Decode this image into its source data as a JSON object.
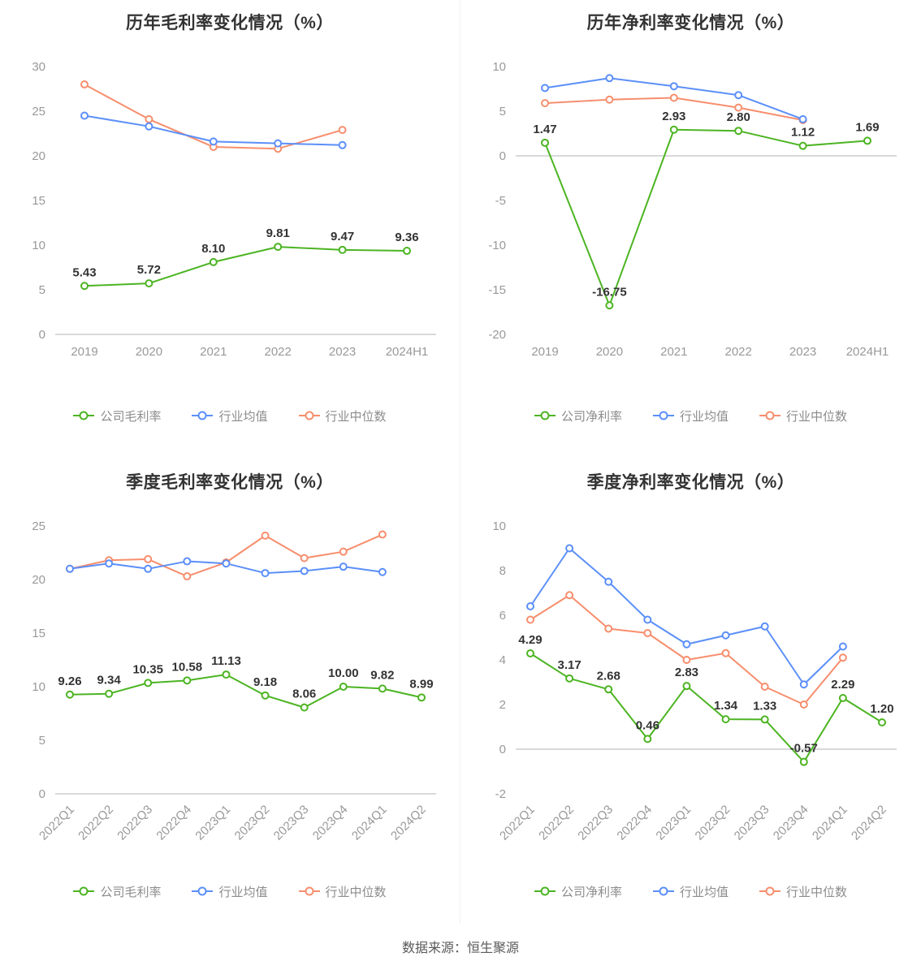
{
  "footer": {
    "source": "数据来源：恒生聚源"
  },
  "colors": {
    "company": "#4cb422",
    "industry_avg": "#5b8ff9",
    "industry_median": "#f78e6d"
  },
  "chart_data": [
    {
      "type": "line",
      "title": "历年毛利率变化情况（%）",
      "categories": [
        "2019",
        "2020",
        "2021",
        "2022",
        "2023",
        "2024H1"
      ],
      "ylim": [
        0,
        30
      ],
      "yticks": [
        30,
        25,
        20,
        15,
        10,
        5,
        0
      ],
      "x_label_rotate": false,
      "grid": false,
      "legend_position": "bottom",
      "series": [
        {
          "name": "公司毛利率",
          "color": "#4cb422",
          "values": [
            5.43,
            5.72,
            8.1,
            9.81,
            9.47,
            9.36
          ],
          "point_labels": [
            "5.43",
            "5.72",
            "8.10",
            "9.81",
            "9.47",
            "9.36"
          ]
        },
        {
          "name": "行业均值",
          "color": "#5b8ff9",
          "values": [
            24.5,
            23.3,
            21.6,
            21.4,
            21.2,
            null
          ]
        },
        {
          "name": "行业中位数",
          "color": "#f78e6d",
          "values": [
            28.0,
            24.1,
            21.0,
            20.8,
            22.9,
            null
          ]
        }
      ]
    },
    {
      "type": "line",
      "title": "历年净利率变化情况（%）",
      "categories": [
        "2019",
        "2020",
        "2021",
        "2022",
        "2023",
        "2024H1"
      ],
      "ylim": [
        -20,
        10
      ],
      "yticks": [
        10,
        5,
        0,
        -5,
        -10,
        -15,
        -20
      ],
      "x_label_rotate": false,
      "grid": false,
      "legend_position": "bottom",
      "series": [
        {
          "name": "公司净利率",
          "color": "#4cb422",
          "values": [
            1.47,
            -16.75,
            2.93,
            2.8,
            1.12,
            1.69
          ],
          "point_labels": [
            "1.47",
            "-16.75",
            "2.93",
            "2.80",
            "1.12",
            "1.69"
          ]
        },
        {
          "name": "行业均值",
          "color": "#5b8ff9",
          "values": [
            7.6,
            8.7,
            7.8,
            6.8,
            4.1,
            null
          ]
        },
        {
          "name": "行业中位数",
          "color": "#f78e6d",
          "values": [
            5.9,
            6.3,
            6.5,
            5.4,
            4.0,
            null
          ]
        }
      ]
    },
    {
      "type": "line",
      "title": "季度毛利率变化情况（%）",
      "categories": [
        "2022Q1",
        "2022Q2",
        "2022Q3",
        "2022Q4",
        "2023Q1",
        "2023Q2",
        "2023Q3",
        "2023Q4",
        "2024Q1",
        "2024Q2"
      ],
      "ylim": [
        0,
        25
      ],
      "yticks": [
        25,
        20,
        15,
        10,
        5,
        0
      ],
      "x_label_rotate": true,
      "grid": false,
      "legend_position": "bottom",
      "series": [
        {
          "name": "公司毛利率",
          "color": "#4cb422",
          "values": [
            9.26,
            9.34,
            10.35,
            10.58,
            11.13,
            9.18,
            8.06,
            10.0,
            9.82,
            8.99
          ],
          "point_labels": [
            "9.26",
            "9.34",
            "10.35",
            "10.58",
            "11.13",
            "9.18",
            "8.06",
            "10.00",
            "9.82",
            "8.99"
          ]
        },
        {
          "name": "行业均值",
          "color": "#5b8ff9",
          "values": [
            21.0,
            21.5,
            21.0,
            21.7,
            21.5,
            20.6,
            20.8,
            21.2,
            20.7,
            null
          ]
        },
        {
          "name": "行业中位数",
          "color": "#f78e6d",
          "values": [
            21.0,
            21.8,
            21.9,
            20.3,
            21.6,
            24.1,
            22.0,
            22.6,
            24.2,
            null
          ]
        }
      ]
    },
    {
      "type": "line",
      "title": "季度净利率变化情况（%）",
      "categories": [
        "2022Q1",
        "2022Q2",
        "2022Q3",
        "2022Q4",
        "2023Q1",
        "2023Q2",
        "2023Q3",
        "2023Q4",
        "2024Q1",
        "2024Q2"
      ],
      "ylim": [
        -2,
        10
      ],
      "yticks": [
        10,
        8,
        6,
        4,
        2,
        0,
        -2
      ],
      "x_label_rotate": true,
      "grid": false,
      "legend_position": "bottom",
      "series": [
        {
          "name": "公司净利率",
          "color": "#4cb422",
          "values": [
            4.29,
            3.17,
            2.68,
            0.46,
            2.83,
            1.34,
            1.33,
            -0.57,
            2.29,
            1.2
          ],
          "point_labels": [
            "4.29",
            "3.17",
            "2.68",
            "0.46",
            "2.83",
            "1.34",
            "1.33",
            "-0.57",
            "2.29",
            "1.20"
          ]
        },
        {
          "name": "行业均值",
          "color": "#5b8ff9",
          "values": [
            6.4,
            9.0,
            7.5,
            5.8,
            4.7,
            5.1,
            5.5,
            2.9,
            4.6,
            null
          ]
        },
        {
          "name": "行业中位数",
          "color": "#f78e6d",
          "values": [
            5.8,
            6.9,
            5.4,
            5.2,
            4.0,
            4.3,
            2.8,
            2.0,
            4.1,
            null
          ]
        }
      ]
    }
  ]
}
